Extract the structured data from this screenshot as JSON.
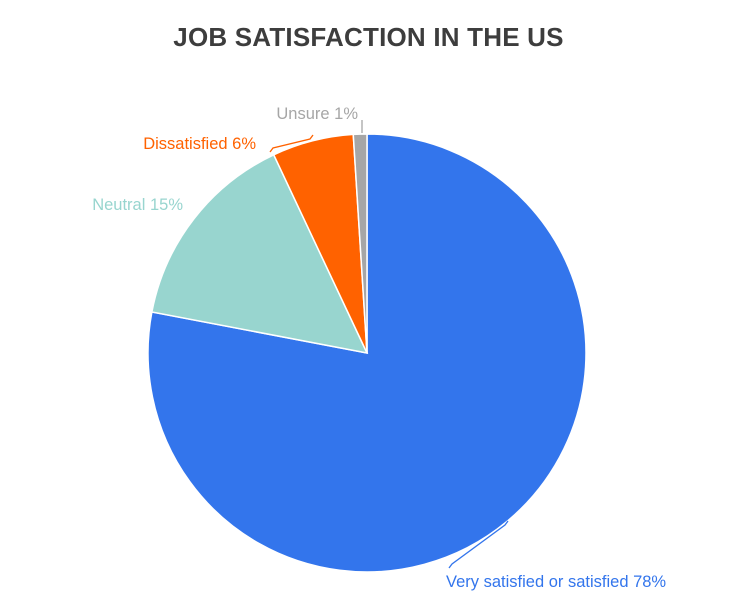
{
  "chart_data": {
    "type": "pie",
    "title": "JOB SATISFACTION IN THE US",
    "slices": [
      {
        "label": "Very satisfied or satisfied",
        "value": 78,
        "display": "Very satisfied or satisfied 78%",
        "color": "#3375ec"
      },
      {
        "label": "Neutral",
        "value": 15,
        "display": "Neutral 15%",
        "color": "#98d5cf"
      },
      {
        "label": "Dissatisfied",
        "value": 6,
        "display": "Dissatisfied 6%",
        "color": "#ff6200"
      },
      {
        "label": "Unsure",
        "value": 1,
        "display": "Unsure 1%",
        "color": "#a6a6a6"
      }
    ]
  },
  "colors": {
    "title": "#3d3d3d",
    "slice_border": "#ffffff"
  }
}
